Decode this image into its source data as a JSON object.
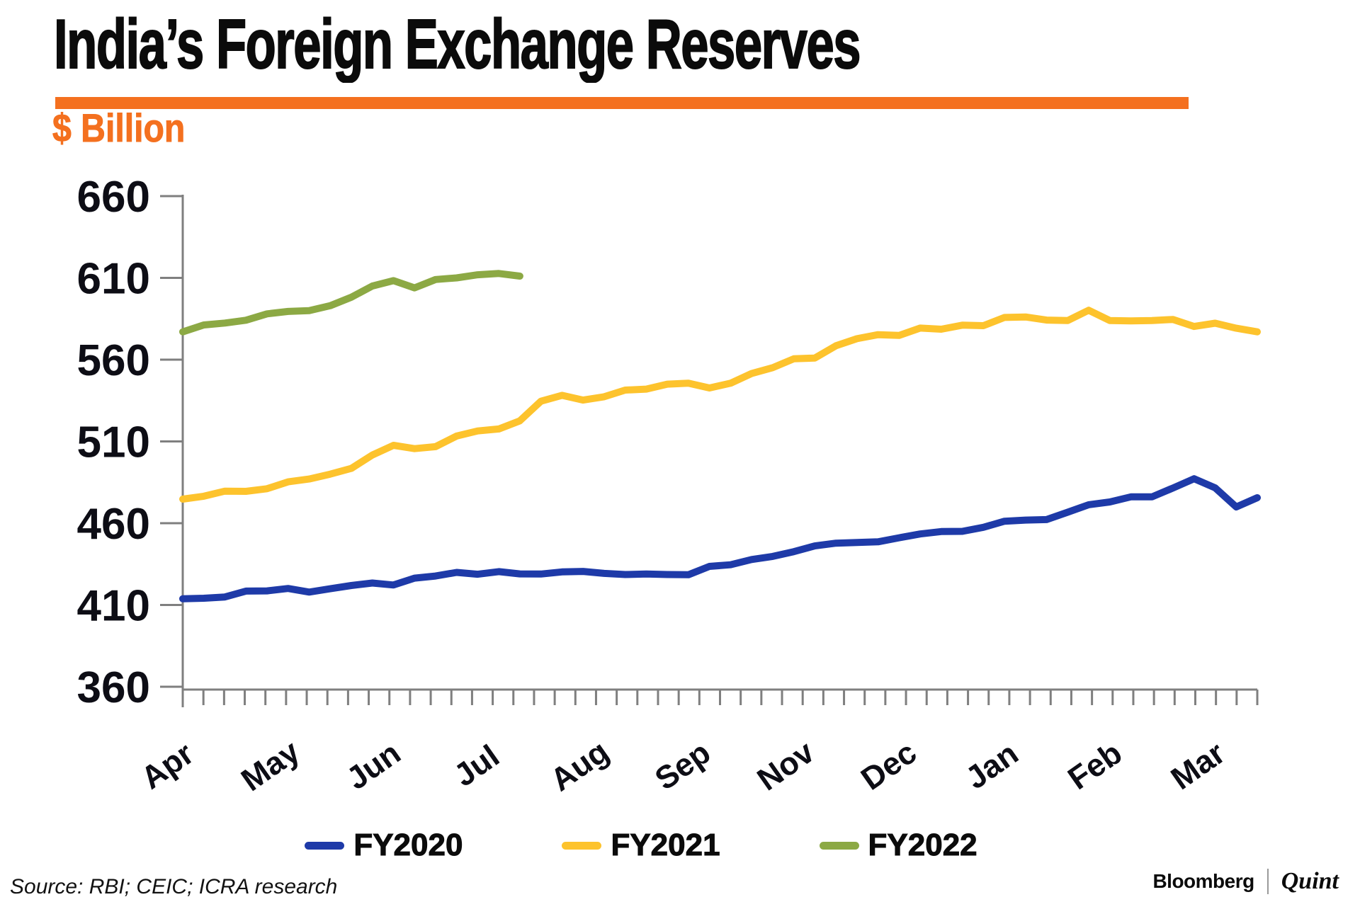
{
  "header": {
    "title": "India’s Foreign Exchange Reserves",
    "subtitle": "$ Billion"
  },
  "colors": {
    "accent_orange": "#F4701F",
    "axis_gray": "#7f7f7f",
    "label_black": "#0d0d15"
  },
  "chart_data": {
    "type": "line",
    "title": "India’s Foreign Exchange Reserves",
    "ylabel": "$ Billion",
    "ylim": [
      360,
      660
    ],
    "grid": false,
    "legend_position": "bottom",
    "y_axis": {
      "min": 360,
      "max": 660,
      "step": 50,
      "tick_labels": [
        "660",
        "610",
        "560",
        "510",
        "460",
        "410",
        "360"
      ]
    },
    "x_axis": {
      "tick_count": 53,
      "month_labels": [
        "Apr",
        "May",
        "Jun",
        "Jul",
        "Aug",
        "Sep",
        "Nov",
        "Dec",
        "Jan",
        "Feb",
        "Mar"
      ]
    },
    "series": [
      {
        "name": "FY2020",
        "color": "#1E3AA8",
        "values": [
          413.8,
          414.1,
          414.9,
          418.5,
          418.6,
          420.1,
          417.9,
          419.9,
          421.9,
          423.4,
          422.2,
          426.4,
          427.7,
          429.9,
          428.8,
          430.4,
          429.0,
          428.9,
          430.2,
          430.5,
          429.3,
          428.6,
          428.9,
          428.6,
          428.5,
          433.6,
          434.6,
          437.8,
          439.7,
          442.6,
          446.1,
          447.8,
          448.2,
          448.6,
          451.1,
          453.4,
          454.9,
          455.0,
          457.5,
          461.2,
          461.9,
          462.2,
          466.7,
          471.3,
          473.0,
          476.1,
          476.1,
          481.5,
          487.2,
          481.6,
          469.9,
          475.6
        ]
      },
      {
        "name": "FY2021",
        "color": "#FDC32D",
        "values": [
          474.7,
          476.5,
          479.6,
          479.5,
          481.1,
          485.3,
          487.0,
          490.0,
          493.5,
          501.7,
          507.6,
          505.6,
          506.8,
          513.3,
          516.4,
          517.6,
          522.6,
          534.6,
          538.2,
          535.3,
          537.3,
          541.4,
          542.0,
          545.0,
          545.6,
          542.7,
          545.6,
          551.5,
          555.1,
          560.5,
          561.0,
          568.5,
          572.8,
          575.3,
          574.8,
          579.3,
          578.6,
          581.1,
          580.8,
          585.8,
          586.1,
          584.2,
          583.9,
          590.2,
          583.9,
          583.7,
          583.9,
          584.6,
          580.3,
          582.3,
          579.2,
          577.0
        ]
      },
      {
        "name": "FY2022",
        "color": "#8CA944",
        "values": [
          577.0,
          581.2,
          582.4,
          584.1,
          588.0,
          589.5,
          590.0,
          593.0,
          598.2,
          605.0,
          608.3,
          603.9,
          609.0,
          610.0,
          611.9,
          612.7,
          611.1
        ]
      }
    ]
  },
  "footer": {
    "source": "Source: RBI; CEIC; ICRA research",
    "brand_left": "Bloomberg",
    "brand_right": "Quint"
  }
}
